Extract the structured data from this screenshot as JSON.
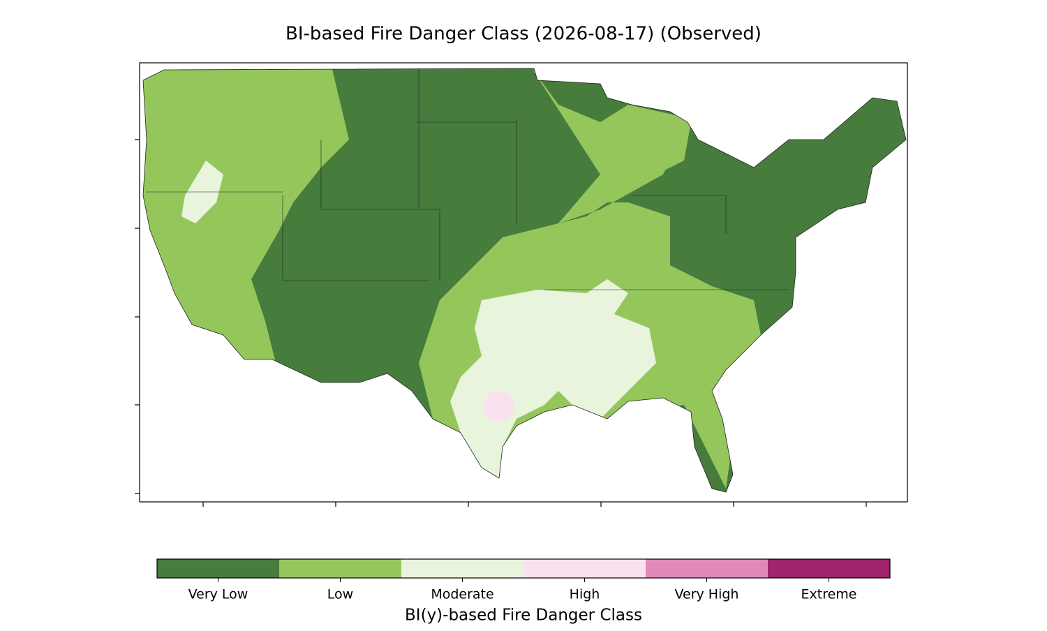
{
  "title": "BI-based Fire Danger Class (2026-08-17) (Observed)",
  "colorbar": {
    "label": "BI(y)-based Fire Danger Class",
    "classes": [
      {
        "name": "Very Low",
        "color": "#467c3c"
      },
      {
        "name": "Low",
        "color": "#95c65c"
      },
      {
        "name": "Moderate",
        "color": "#e8f4dc"
      },
      {
        "name": "High",
        "color": "#fbe0ef"
      },
      {
        "name": "Very High",
        "color": "#e288ba"
      },
      {
        "name": "Extreme",
        "color": "#a0246c"
      }
    ]
  }
}
